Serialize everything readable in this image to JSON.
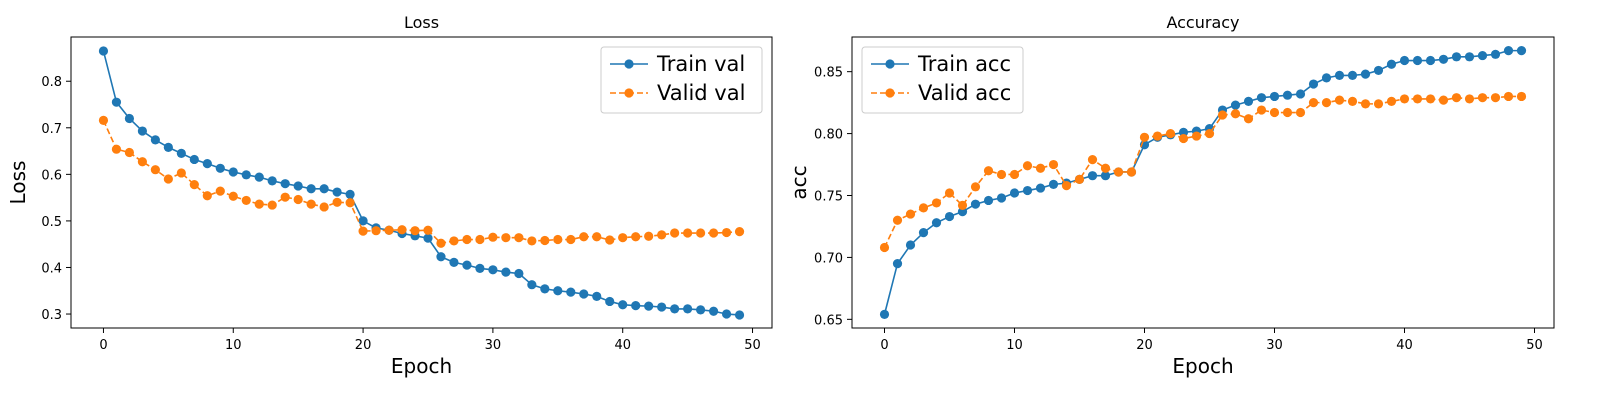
{
  "chart_data": [
    {
      "type": "line",
      "title": "Loss",
      "xlabel": "Epoch",
      "ylabel": "Loss",
      "xlim": [
        -2.5,
        51.5
      ],
      "ylim": [
        0.27,
        0.895
      ],
      "xticks": [
        0,
        10,
        20,
        30,
        40,
        50
      ],
      "yticks": [
        0.3,
        0.4,
        0.5,
        0.6,
        0.7,
        0.8
      ],
      "ytick_labels": [
        "0.3",
        "0.4",
        "0.5",
        "0.6",
        "0.7",
        "0.8"
      ],
      "grid": false,
      "legend": "top-right",
      "x": [
        0,
        1,
        2,
        3,
        4,
        5,
        6,
        7,
        8,
        9,
        10,
        11,
        12,
        13,
        14,
        15,
        16,
        17,
        18,
        19,
        20,
        21,
        22,
        23,
        24,
        25,
        26,
        27,
        28,
        29,
        30,
        31,
        32,
        33,
        34,
        35,
        36,
        37,
        38,
        39,
        40,
        41,
        42,
        43,
        44,
        45,
        46,
        47,
        48,
        49
      ],
      "series": [
        {
          "name": "Train val",
          "color": "#1f77b4",
          "style": "solid",
          "values": [
            0.865,
            0.755,
            0.72,
            0.693,
            0.674,
            0.658,
            0.645,
            0.632,
            0.623,
            0.613,
            0.605,
            0.599,
            0.594,
            0.586,
            0.58,
            0.575,
            0.569,
            0.569,
            0.562,
            0.557,
            0.5,
            0.485,
            0.48,
            0.473,
            0.468,
            0.463,
            0.423,
            0.411,
            0.405,
            0.398,
            0.395,
            0.39,
            0.387,
            0.363,
            0.354,
            0.35,
            0.347,
            0.343,
            0.338,
            0.327,
            0.32,
            0.318,
            0.317,
            0.315,
            0.311,
            0.311,
            0.309,
            0.306,
            0.3,
            0.298
          ]
        },
        {
          "name": "Valid val",
          "color": "#ff7f0e",
          "style": "dashed",
          "values": [
            0.716,
            0.654,
            0.647,
            0.627,
            0.61,
            0.59,
            0.603,
            0.578,
            0.554,
            0.564,
            0.553,
            0.544,
            0.536,
            0.534,
            0.551,
            0.546,
            0.536,
            0.53,
            0.54,
            0.539,
            0.478,
            0.479,
            0.48,
            0.481,
            0.479,
            0.48,
            0.452,
            0.457,
            0.46,
            0.46,
            0.465,
            0.464,
            0.464,
            0.457,
            0.458,
            0.46,
            0.46,
            0.466,
            0.466,
            0.459,
            0.464,
            0.466,
            0.467,
            0.47,
            0.474,
            0.474,
            0.474,
            0.474,
            0.475,
            0.477
          ]
        }
      ]
    },
    {
      "type": "line",
      "title": "Accuracy",
      "xlabel": "Epoch",
      "ylabel": "acc",
      "xlim": [
        -2.5,
        51.5
      ],
      "ylim": [
        0.643,
        0.878
      ],
      "xticks": [
        0,
        10,
        20,
        30,
        40,
        50
      ],
      "yticks": [
        0.65,
        0.7,
        0.75,
        0.8,
        0.85
      ],
      "ytick_labels": [
        "0.65",
        "0.70",
        "0.75",
        "0.80",
        "0.85"
      ],
      "grid": false,
      "legend": "top-left",
      "x": [
        0,
        1,
        2,
        3,
        4,
        5,
        6,
        7,
        8,
        9,
        10,
        11,
        12,
        13,
        14,
        15,
        16,
        17,
        18,
        19,
        20,
        21,
        22,
        23,
        24,
        25,
        26,
        27,
        28,
        29,
        30,
        31,
        32,
        33,
        34,
        35,
        36,
        37,
        38,
        39,
        40,
        41,
        42,
        43,
        44,
        45,
        46,
        47,
        48,
        49
      ],
      "series": [
        {
          "name": "Train acc",
          "color": "#1f77b4",
          "style": "solid",
          "values": [
            0.654,
            0.695,
            0.71,
            0.72,
            0.728,
            0.733,
            0.737,
            0.743,
            0.746,
            0.748,
            0.752,
            0.754,
            0.756,
            0.759,
            0.76,
            0.763,
            0.766,
            0.766,
            0.769,
            0.769,
            0.791,
            0.797,
            0.799,
            0.801,
            0.802,
            0.804,
            0.819,
            0.823,
            0.826,
            0.829,
            0.83,
            0.831,
            0.832,
            0.84,
            0.845,
            0.847,
            0.847,
            0.848,
            0.851,
            0.856,
            0.859,
            0.859,
            0.859,
            0.86,
            0.862,
            0.862,
            0.863,
            0.864,
            0.867,
            0.867
          ]
        },
        {
          "name": "Valid acc",
          "color": "#ff7f0e",
          "style": "dashed",
          "values": [
            0.708,
            0.73,
            0.735,
            0.74,
            0.744,
            0.752,
            0.742,
            0.757,
            0.77,
            0.767,
            0.767,
            0.774,
            0.772,
            0.775,
            0.758,
            0.763,
            0.779,
            0.772,
            0.769,
            0.769,
            0.797,
            0.798,
            0.8,
            0.796,
            0.798,
            0.8,
            0.815,
            0.816,
            0.812,
            0.819,
            0.817,
            0.817,
            0.817,
            0.825,
            0.825,
            0.827,
            0.826,
            0.824,
            0.824,
            0.826,
            0.828,
            0.828,
            0.828,
            0.827,
            0.829,
            0.828,
            0.829,
            0.829,
            0.83,
            0.83
          ]
        }
      ]
    }
  ]
}
